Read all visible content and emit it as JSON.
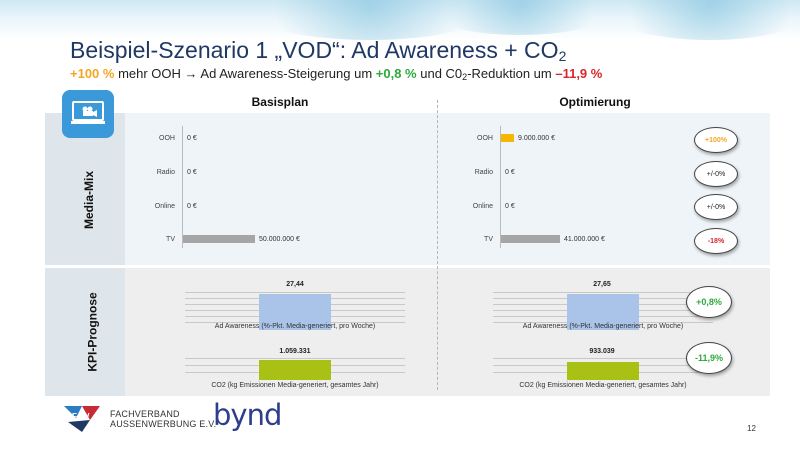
{
  "slide": {
    "title_main": "Beispiel-Szenario 1 „VOD“: Ad Awareness + CO",
    "title_sub": "2",
    "subtitle": {
      "p1": "+100 %",
      "p2": " mehr OOH → Ad Awareness-Steigerung um ",
      "p3": "+0,8 %",
      "p4": " und C0",
      "p4_sub": "2",
      "p5": "-Reduktion um ",
      "p6": "–11,9 %"
    },
    "section_labels": {
      "media_mix": "Media-Mix",
      "kpi": "KPI-Prognose"
    },
    "columns": {
      "left": "Basisplan",
      "right": "Optimierung"
    },
    "media_mix": {
      "channels": [
        "OOH",
        "Radio",
        "Online",
        "TV"
      ],
      "basisplan": [
        {
          "label": "0 €",
          "value": 0
        },
        {
          "label": "0 €",
          "value": 0
        },
        {
          "label": "0 €",
          "value": 0
        },
        {
          "label": "50.000.000 €",
          "value": 50000000
        }
      ],
      "optimierung": [
        {
          "label": "9.000.000 €",
          "value": 9000000
        },
        {
          "label": "0 €",
          "value": 0
        },
        {
          "label": "0 €",
          "value": 0
        },
        {
          "label": "41.000.000 €",
          "value": 41000000
        }
      ],
      "changes": [
        "+100%",
        "+/-0%",
        "+/-0%",
        "-18%"
      ]
    },
    "kpi": {
      "ad_awareness": {
        "caption": "Ad Awareness (%-Pkt. Media-generiert, pro Woche)",
        "basis_label": "27,44",
        "basis_value": 27.44,
        "opt_label": "27,65",
        "opt_value": 27.65,
        "change": "+0,8%"
      },
      "co2": {
        "caption": "CO2 (kg Emissionen Media-generiert, gesamtes Jahr)",
        "basis_label": "1.059.331",
        "basis_value": 1059331,
        "opt_label": "933.039",
        "opt_value": 933039,
        "change": "-11,9%"
      }
    },
    "footer": {
      "faw_line1": "FACHVERBAND",
      "faw_line2": "AUSSENWERBUNG E.V.",
      "bynd": "bynd",
      "page": "12"
    },
    "colors": {
      "title": "#1f3864",
      "orange": "#f5a623",
      "green": "#2eaa3c",
      "red": "#d9262e",
      "tv_bar": "#a6a6a6",
      "ooh_bar": "#f5b800",
      "aa_bar": "#a9c4e8",
      "co2_bar": "#a9c114",
      "icon_bg": "#3a9ad9"
    }
  }
}
